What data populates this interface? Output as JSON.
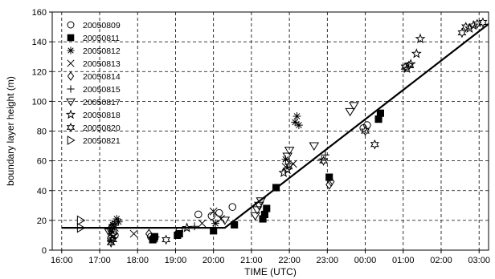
{
  "chart_data": {
    "type": "scatter",
    "title": "",
    "xlabel": "TIME (UTC)",
    "ylabel": "boundary layer height (m)",
    "x_unit": "hours UTC (values beyond 24 are past midnight)",
    "xlim": [
      15.75,
      27.25
    ],
    "ylim": [
      0,
      160
    ],
    "x_ticks": [
      16,
      17,
      18,
      19,
      20,
      21,
      22,
      23,
      24,
      25,
      26,
      27
    ],
    "x_tick_labels": [
      "16:00",
      "17:00",
      "18:00",
      "19:00",
      "20:00",
      "21:00",
      "22:00",
      "23:00",
      "00:00",
      "01:00",
      "02:00",
      "03:00"
    ],
    "y_ticks": [
      0,
      20,
      40,
      60,
      80,
      100,
      120,
      140,
      160
    ],
    "y_tick_labels": [
      "0",
      "20",
      "40",
      "60",
      "80",
      "100",
      "120",
      "140",
      "160"
    ],
    "grid": "dashed",
    "legend_position": "top-left",
    "series": [
      {
        "name": "20050809",
        "marker": "circle",
        "points": [
          [
            17.3,
            14
          ],
          [
            17.35,
            12
          ],
          [
            17.3,
            8
          ],
          [
            17.4,
            10
          ],
          [
            18.35,
            9
          ],
          [
            19.1,
            13
          ],
          [
            19.6,
            24
          ],
          [
            19.95,
            23
          ],
          [
            20.15,
            25
          ],
          [
            20.5,
            29
          ],
          [
            23.95,
            82
          ],
          [
            24.05,
            84
          ]
        ]
      },
      {
        "name": "20050811",
        "marker": "square",
        "points": [
          [
            18.4,
            7
          ],
          [
            18.45,
            9
          ],
          [
            19.05,
            10
          ],
          [
            19.1,
            11
          ],
          [
            20.0,
            13
          ],
          [
            20.55,
            17
          ],
          [
            21.3,
            21
          ],
          [
            21.35,
            24
          ],
          [
            21.4,
            28
          ],
          [
            21.65,
            42
          ],
          [
            23.05,
            49
          ],
          [
            24.35,
            88
          ],
          [
            24.4,
            92
          ]
        ]
      },
      {
        "name": "20050812",
        "marker": "asterisk",
        "points": [
          [
            17.3,
            6
          ],
          [
            17.35,
            17
          ],
          [
            17.45,
            21
          ],
          [
            17.5,
            19
          ],
          [
            20.05,
            18
          ],
          [
            21.9,
            61
          ],
          [
            22.15,
            86
          ],
          [
            22.2,
            90
          ],
          [
            22.25,
            84
          ]
        ]
      },
      {
        "name": "20050813",
        "marker": "x",
        "points": [
          [
            17.3,
            13
          ],
          [
            17.4,
            15
          ],
          [
            17.9,
            11
          ],
          [
            19.7,
            18
          ],
          [
            20.0,
            26
          ],
          [
            20.2,
            21
          ],
          [
            21.9,
            56
          ],
          [
            22.1,
            58
          ]
        ]
      },
      {
        "name": "20050814",
        "marker": "diamond",
        "points": [
          [
            17.3,
            15
          ],
          [
            17.35,
            17
          ],
          [
            18.3,
            11
          ],
          [
            23.05,
            44
          ],
          [
            23.1,
            46
          ]
        ]
      },
      {
        "name": "20050815",
        "marker": "plus",
        "points": [
          [
            17.25,
            15
          ],
          [
            17.4,
            18
          ],
          [
            19.5,
            16
          ],
          [
            22.85,
            61
          ],
          [
            22.95,
            64
          ]
        ]
      },
      {
        "name": "20050817",
        "marker": "triangle-down",
        "points": [
          [
            17.25,
            12
          ],
          [
            20.3,
            20
          ],
          [
            21.1,
            23
          ],
          [
            21.15,
            27
          ],
          [
            21.2,
            30
          ],
          [
            21.25,
            33
          ],
          [
            21.95,
            63
          ],
          [
            22.0,
            67
          ],
          [
            22.65,
            70
          ],
          [
            23.6,
            93
          ],
          [
            23.7,
            97
          ]
        ]
      },
      {
        "name": "20050818",
        "marker": "star-5",
        "points": [
          [
            17.35,
            10
          ],
          [
            18.45,
            8
          ],
          [
            19.3,
            15
          ],
          [
            21.85,
            52
          ],
          [
            21.95,
            54
          ],
          [
            22.0,
            57
          ],
          [
            25.1,
            122
          ],
          [
            25.2,
            125
          ],
          [
            25.35,
            132
          ],
          [
            25.45,
            142
          ],
          [
            26.75,
            149
          ],
          [
            26.85,
            151
          ]
        ]
      },
      {
        "name": "20050820",
        "marker": "star-6",
        "points": [
          [
            17.3,
            5
          ],
          [
            17.35,
            7
          ],
          [
            18.75,
            7
          ],
          [
            22.9,
            60
          ],
          [
            24.0,
            80
          ],
          [
            24.25,
            71
          ],
          [
            25.05,
            123
          ],
          [
            25.15,
            124
          ],
          [
            26.55,
            146
          ],
          [
            26.65,
            150
          ],
          [
            26.95,
            152
          ],
          [
            27.1,
            153
          ]
        ]
      },
      {
        "name": "20050821",
        "marker": "triangle-right",
        "points": [
          [
            16.5,
            20
          ],
          [
            16.5,
            15
          ]
        ]
      }
    ],
    "reference_line": {
      "points": [
        [
          16.0,
          15
        ],
        [
          20.3,
          15
        ],
        [
          27.25,
          152
        ],
        [
          27.5,
          152
        ]
      ]
    }
  }
}
